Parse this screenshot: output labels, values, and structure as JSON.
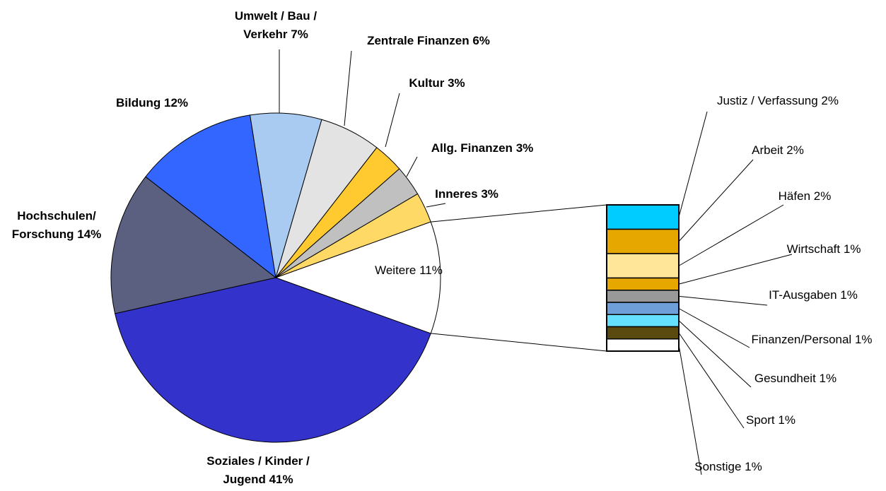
{
  "chart_data": {
    "type": "pie",
    "categories": [
      "Soziales / Kinder / Jugend",
      "Hochschulen/ Forschung",
      "Bildung",
      "Umwelt / Bau / Verkehr",
      "Zentrale Finanzen",
      "Kultur",
      "Allg. Finanzen",
      "Inneres",
      "Weitere"
    ],
    "values": [
      41,
      14,
      12,
      7,
      6,
      3,
      3,
      3,
      11
    ],
    "value_labels": [
      "41%",
      "14%",
      "12%",
      "7%",
      "6%",
      "3%",
      "3%",
      "3%",
      "11%"
    ],
    "colors": [
      "#3333cc",
      "#5b6080",
      "#3366ff",
      "#a9cbf1",
      "#e3e3e3",
      "#ffc930",
      "#c0c0c0",
      "#ffd966",
      "#ffffff"
    ],
    "breakdown": {
      "type": "bar",
      "categories": [
        "Justiz / Verfassung",
        "Arbeit",
        "Häfen",
        "Wirtschaft",
        "IT-Ausgaben",
        "Finanzen/Personal",
        "Gesundheit",
        "Sport",
        "Sonstige"
      ],
      "values": [
        2,
        2,
        2,
        1,
        1,
        1,
        1,
        1,
        1
      ],
      "value_labels": [
        "2%",
        "2%",
        "2%",
        "1%",
        "1%",
        "1%",
        "1%",
        "1%",
        "1%"
      ],
      "colors": [
        "#00ccff",
        "#e6a800",
        "#ffe699",
        "#e6a800",
        "#999999",
        "#6f9fd8",
        "#66e0ff",
        "#5a4a10",
        "#ffffff"
      ]
    }
  }
}
